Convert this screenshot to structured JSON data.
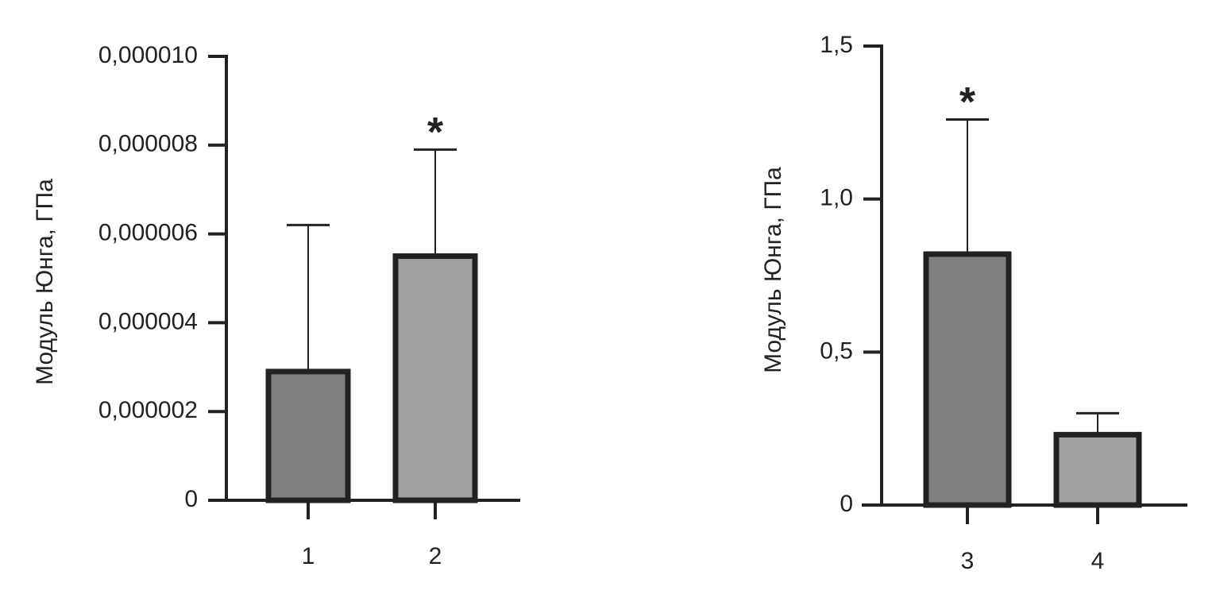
{
  "chart_data": [
    {
      "type": "bar",
      "y_label": "Модуль Юнга, ГПа",
      "categories": [
        "1",
        "2"
      ],
      "values": [
        2.9e-06,
        5.5e-06
      ],
      "errors": [
        3.3e-06,
        2.4e-06
      ],
      "colors": [
        "#808080",
        "#a0a0a0"
      ],
      "ylim": [
        0,
        1e-05
      ],
      "yticks": [
        0,
        {
          "value": 2e-06,
          "label": "0,000002"
        },
        {
          "value": 4e-06,
          "label": "0,000004"
        },
        {
          "value": 6e-06,
          "label": "0,000006"
        },
        {
          "value": 8e-06,
          "label": "0,000008"
        },
        {
          "value": 1e-05,
          "label": "0,000010"
        }
      ],
      "annotations": [
        {
          "text": "*",
          "x": "2"
        }
      ]
    },
    {
      "type": "bar",
      "y_label": "Модуль Юнга, ГПа",
      "categories": [
        "3",
        "4"
      ],
      "values": [
        0.82,
        0.23
      ],
      "errors": [
        0.44,
        0.07
      ],
      "colors": [
        "#808080",
        "#a0a0a0"
      ],
      "ylim": [
        0,
        1.5
      ],
      "yticks": [
        0,
        {
          "value": 0.5,
          "label": "0,5"
        },
        {
          "value": 1,
          "label": "1,0"
        },
        {
          "value": 1.5,
          "label": "1,5"
        }
      ],
      "annotations": [
        {
          "text": "*",
          "x": "3"
        }
      ]
    }
  ]
}
